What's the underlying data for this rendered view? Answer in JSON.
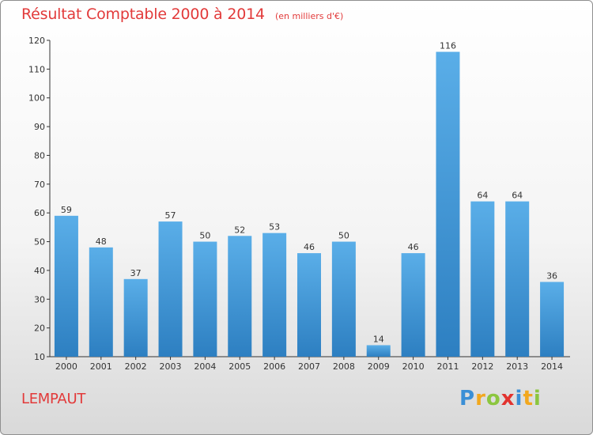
{
  "chart_data": {
    "type": "bar",
    "title": "Résultat Comptable 2000 à 2014",
    "subtitle": "(en milliers d'€)",
    "categories": [
      "2000",
      "2001",
      "2002",
      "2003",
      "2004",
      "2005",
      "2006",
      "2007",
      "2008",
      "2009",
      "2010",
      "2011",
      "2012",
      "2013",
      "2014"
    ],
    "values": [
      59,
      48,
      37,
      57,
      50,
      52,
      53,
      46,
      50,
      14,
      46,
      116,
      64,
      64,
      36
    ],
    "ylim": [
      10,
      120
    ],
    "yticks": [
      10,
      20,
      30,
      40,
      50,
      60,
      70,
      80,
      90,
      100,
      110,
      120
    ],
    "grid": false,
    "legend": "none",
    "bar_color_top": "#5aaee8",
    "bar_color_bottom": "#2d7fc1",
    "xlabel": "",
    "ylabel": ""
  },
  "footer": {
    "commune": "LEMPAUT",
    "brand_letters": [
      "P",
      "r",
      "o",
      "x",
      "i",
      "t",
      "i"
    ],
    "brand_colors": [
      "#3a8fd6",
      "#f2a81f",
      "#8cc63f",
      "#e2332f",
      "#3a8fd6",
      "#f2a81f",
      "#8cc63f"
    ]
  },
  "colors": {
    "title": "#e23a3a",
    "axis": "#333333"
  }
}
